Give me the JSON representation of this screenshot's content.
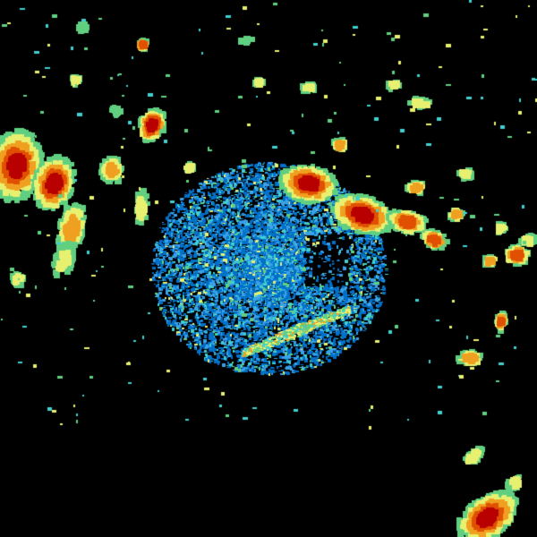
{
  "radar": {
    "background": "#000000",
    "palette": [
      "#0070c8",
      "#3aa0e8",
      "#40d0d0",
      "#60d080",
      "#e8f070",
      "#f0a020",
      "#e05000",
      "#b80000"
    ]
  }
}
